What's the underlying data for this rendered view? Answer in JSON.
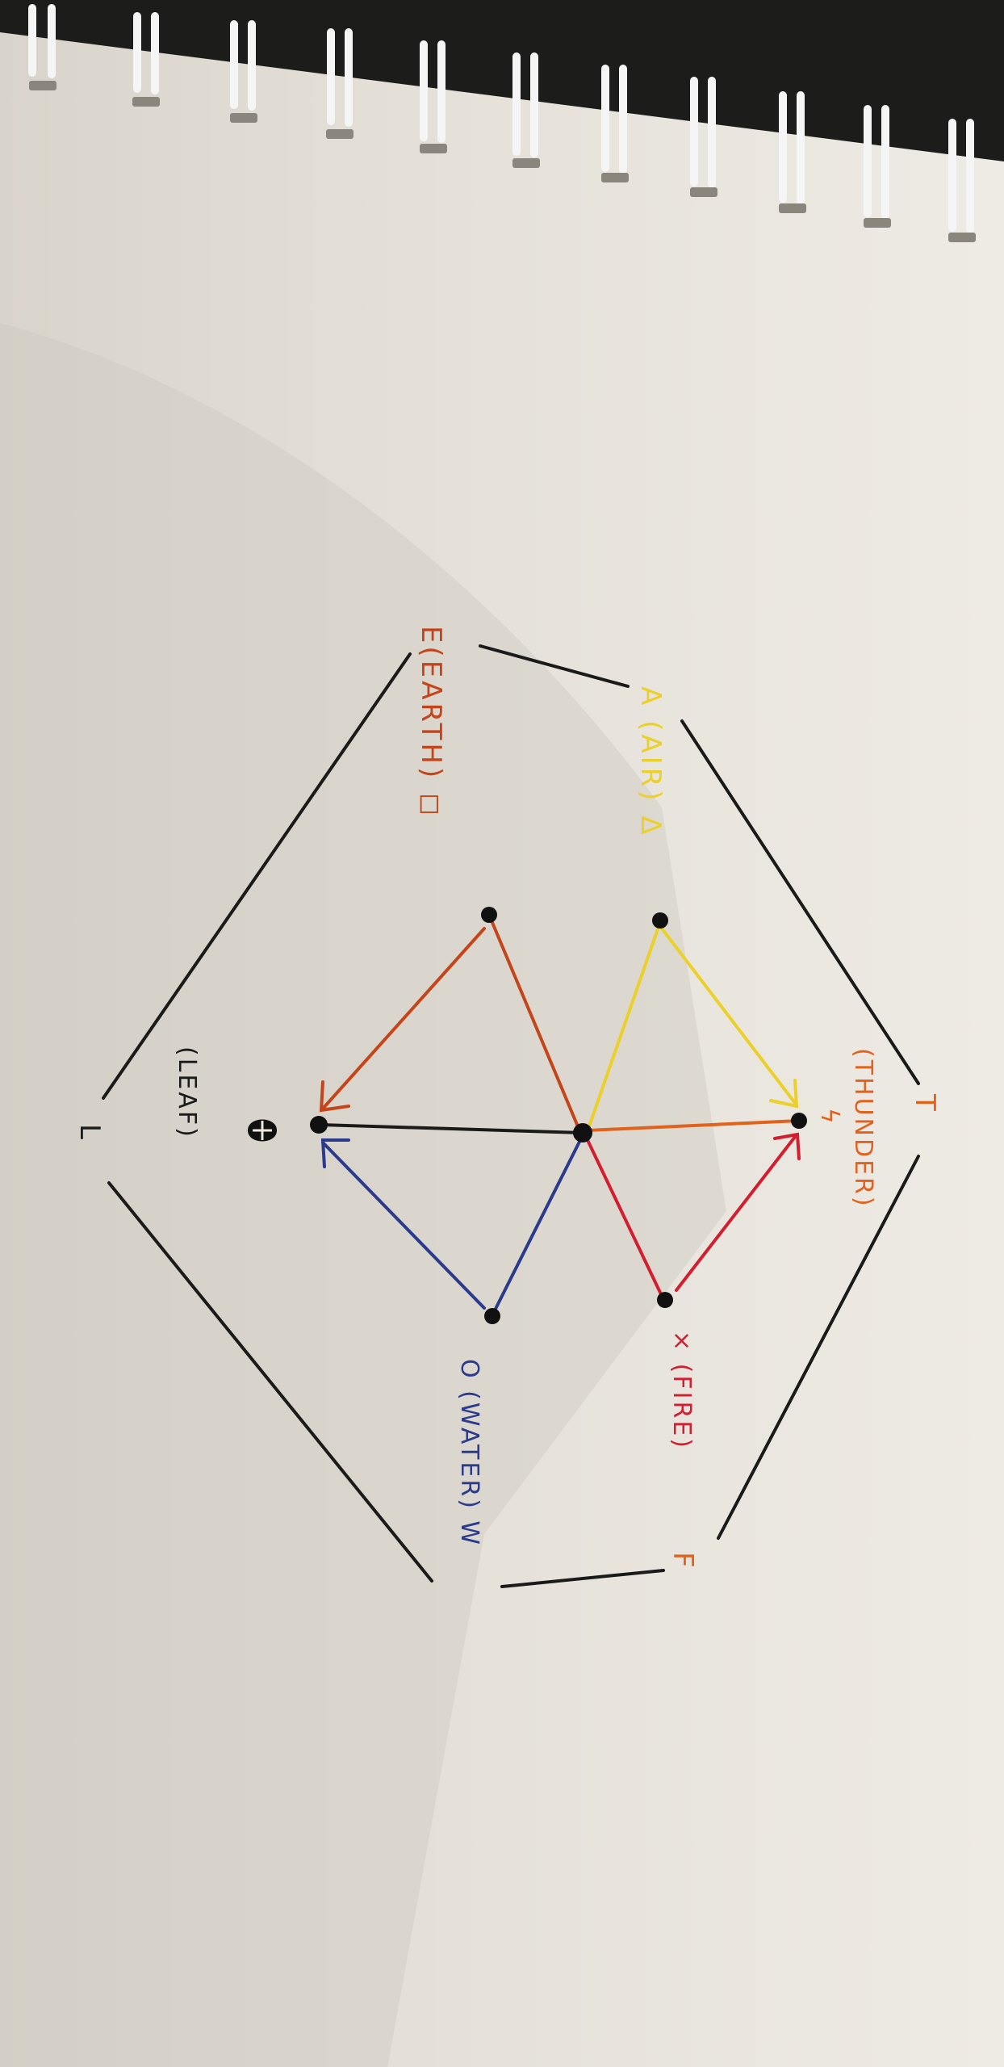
{
  "labels": {
    "air": "A (AIR) Δ",
    "earth": "E(EARTH) ◻",
    "thunder_letter": "T",
    "thunder_word": "(THUNDER)",
    "thunder_symbol": "ϟ",
    "fire": "× (FIRE)",
    "fire_letter": "F",
    "water": "O (WATER) W",
    "leaf_letter": "L",
    "leaf_word": "(LEAF)"
  },
  "colors": {
    "paper": "#ece8df",
    "black_ink": "#1a1a1a",
    "air": "#ecd02a",
    "earth": "#c5451a",
    "thunder": "#e0621c",
    "fire": "#d21e2e",
    "water": "#2a3a8c"
  }
}
